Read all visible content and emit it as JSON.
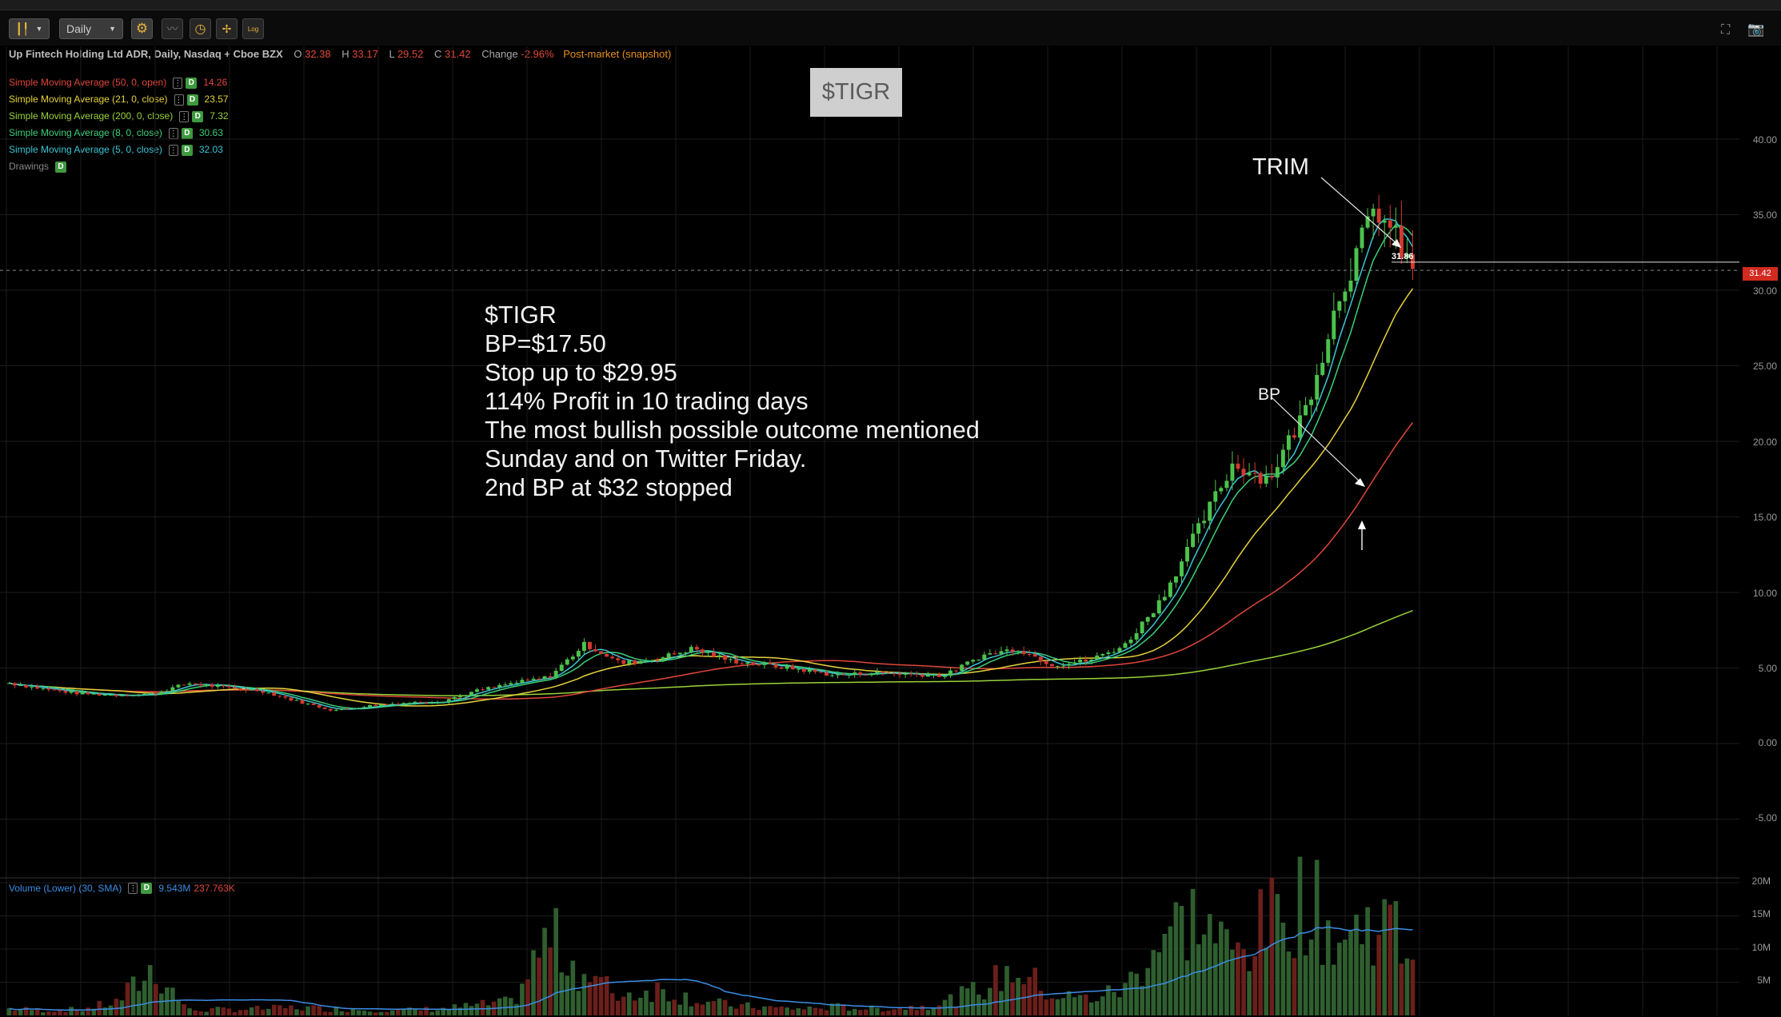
{
  "toolbar": {
    "timeframe": "Daily",
    "log_label": "Log"
  },
  "header": {
    "symbol_desc": "Up Fintech Holding Ltd ADR, Daily, Nasdaq + Cboe BZX",
    "open_label": "O",
    "open": "32.38",
    "high_label": "H",
    "high": "33.17",
    "low_label": "L",
    "low": "29.52",
    "close_label": "C",
    "close": "31.42",
    "change_label": "Change",
    "change": "-2.96%",
    "session": "Post-market (snapshot)"
  },
  "studies": [
    {
      "label": "Simple Moving Average (50, 0, open)",
      "value": "14.26",
      "color": "#e0463a"
    },
    {
      "label": "Simple Moving Average (21, 0, close)",
      "value": "23.57",
      "color": "#e6d23a"
    },
    {
      "label": "Simple Moving Average (200, 0, close)",
      "value": "7.32",
      "color": "#9ad23a"
    },
    {
      "label": "Simple Moving Average (8, 0, close)",
      "value": "30.63",
      "color": "#3ad07a"
    },
    {
      "label": "Simple Moving Average (5, 0, close)",
      "value": "32.03",
      "color": "#3ac6d6"
    }
  ],
  "drawings_label": "Drawings",
  "study_badge": "D",
  "ticker_box": "$TIGR",
  "note_lines": [
    "$TIGR",
    "BP=$17.50",
    "Stop up to $29.95",
    "114% Profit in 10 trading days",
    "The most bullish possible outcome mentioned",
    "Sunday and on Twitter Friday.",
    "2nd BP at $32 stopped"
  ],
  "annotations": {
    "trim": "TRIM",
    "bp": "BP",
    "level_label": "31.86",
    "last_price_tag": "31.42"
  },
  "volume": {
    "label": "Volume (Lower) (30, SMA)",
    "value1": "9.543M",
    "value2": "237.763K",
    "value1_color": "#3a8ee6",
    "value2_color": "#e0463a",
    "axis_ticks": [
      "20M",
      "15M",
      "10M",
      "5M"
    ]
  },
  "chart_data": {
    "type": "candlestick",
    "y_axis_ticks": [
      "40.00",
      "35.00",
      "30.00",
      "25.00",
      "20.00",
      "15.00",
      "10.00",
      "5.00",
      "0.00",
      "-5.00"
    ],
    "ylim": [
      -7.5,
      42
    ],
    "last_close": 31.42,
    "key_points": [
      {
        "label": "BP",
        "price": 17.5
      },
      {
        "label": "TRIM",
        "price": 33.0
      }
    ],
    "price_path": [
      4.0,
      3.6,
      3.3,
      3.2,
      3.3,
      4.0,
      3.7,
      3.5,
      2.8,
      2.2,
      2.5,
      2.7,
      2.8,
      3.5,
      4.0,
      4.4,
      6.6,
      5.3,
      5.6,
      6.3,
      5.5,
      5.2,
      4.9,
      4.5,
      4.7,
      4.6,
      4.5,
      5.8,
      6.3,
      5.2,
      5.5,
      6.5,
      9.5,
      14.0,
      18.5,
      17.5,
      22.0,
      30.0,
      35.5,
      31.4
    ],
    "volume_path": [
      1.0,
      0.8,
      0.9,
      2.0,
      7.0,
      0.8,
      0.9,
      1.0,
      1.2,
      1.0,
      0.9,
      0.8,
      1.0,
      1.5,
      2.0,
      12.0,
      6.0,
      3.0,
      4.0,
      2.5,
      1.5,
      1.2,
      1.0,
      1.3,
      1.0,
      1.2,
      2.0,
      4.0,
      7.0,
      3.0,
      2.5,
      4.0,
      12.0,
      15.0,
      9.0,
      14.0,
      18.0,
      11.0,
      15.0,
      10.0
    ]
  }
}
